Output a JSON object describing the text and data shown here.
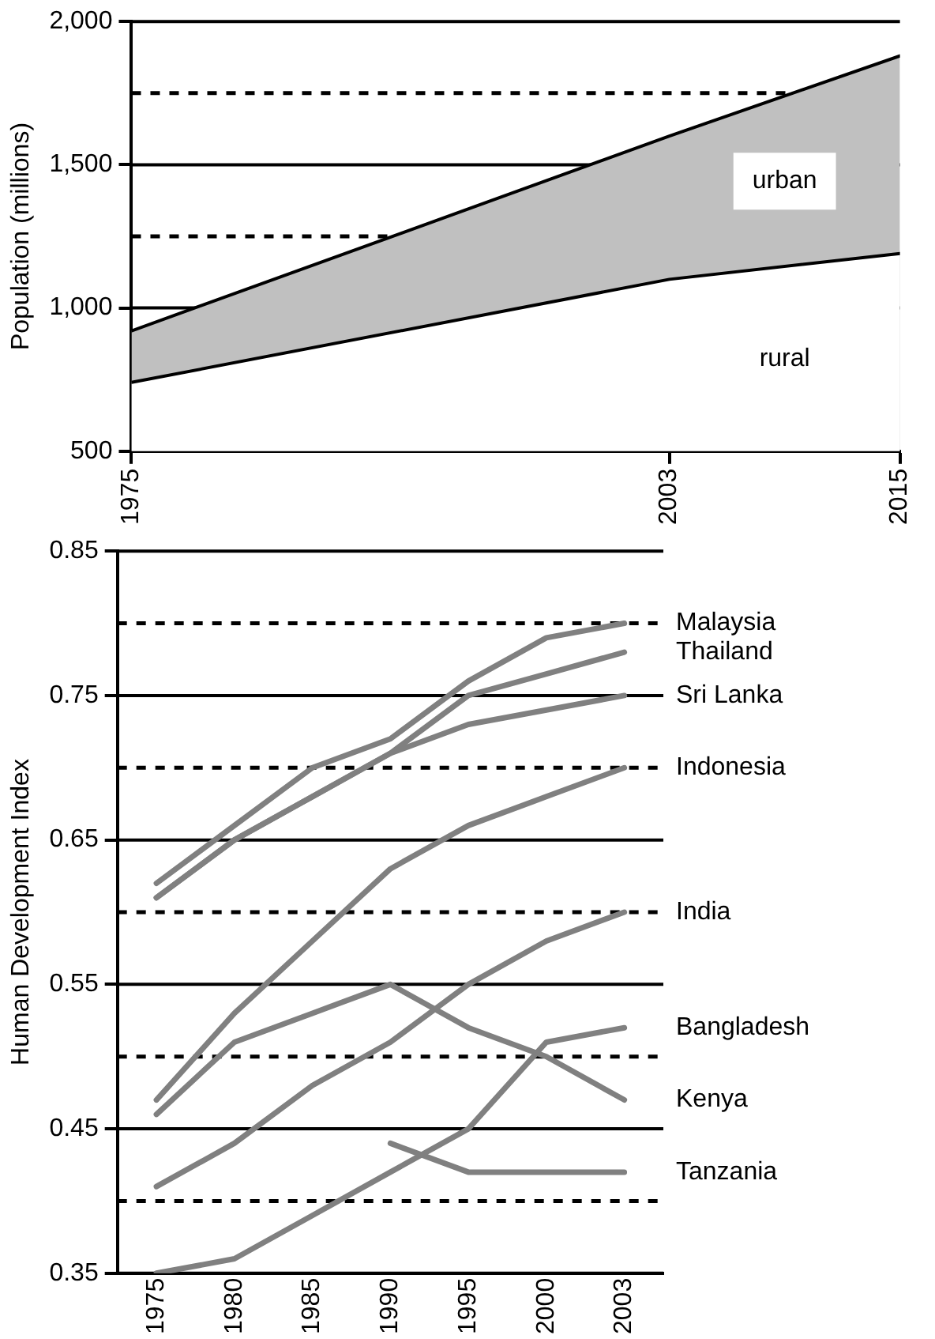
{
  "chart_data": [
    {
      "type": "area",
      "annotations": [
        "urban"
      ],
      "ylabel": "Population (millions)",
      "x": [
        1975,
        2003,
        2015
      ],
      "xlim": [
        1975,
        2015
      ],
      "xticks": [
        1975,
        2003,
        2015
      ],
      "ylim": [
        500,
        2000
      ],
      "yticks": [
        500,
        {
          "value": 1000,
          "label": "1,000"
        },
        {
          "value": 1250,
          "label": null
        },
        {
          "value": 1500,
          "label": "1,500"
        },
        {
          "value": 1750,
          "label": null
        },
        {
          "value": 2000,
          "label": "2,000"
        }
      ],
      "grid": "y",
      "legend": false,
      "marker": "none",
      "series": [
        {
          "name": "rural",
          "color": "#ffffff",
          "values": [
            740,
            1100,
            1190
          ]
        },
        {
          "color": "#c0c0c0",
          "values": [
            920,
            1600,
            1880
          ]
        }
      ]
    },
    {
      "type": "line",
      "ylabel": "Human Development Index",
      "categories": [
        "1975",
        "1980",
        "1985",
        "1990",
        "1995",
        "2000",
        "2003"
      ],
      "ylim": [
        0.35,
        0.85
      ],
      "yticks": [
        0.35,
        {
          "value": 0.4,
          "label": null
        },
        0.45,
        {
          "value": 0.5,
          "label": null
        },
        0.55,
        {
          "value": 0.6,
          "label": null
        },
        0.65,
        {
          "value": 0.7,
          "label": null
        },
        0.75,
        {
          "value": 0.8,
          "label": null
        },
        0.85
      ],
      "grid": "y",
      "legend": false,
      "marker": "none",
      "series": [
        {
          "name": "Malaysia",
          "color": "#808080",
          "values": [
            0.62,
            0.66,
            0.7,
            0.72,
            0.76,
            0.79,
            0.8
          ]
        },
        {
          "name": "Thailand",
          "color": "#808080",
          "values": [
            0.61,
            0.65,
            0.68,
            0.71,
            0.75,
            0.765,
            0.78
          ]
        },
        {
          "name": "Sri Lanka",
          "color": "#808080",
          "values": [
            0.61,
            0.65,
            0.68,
            0.71,
            0.73,
            0.74,
            0.75
          ]
        },
        {
          "name": "Indonesia",
          "color": "#808080",
          "values": [
            0.47,
            0.53,
            0.58,
            0.63,
            0.66,
            0.68,
            0.7
          ]
        },
        {
          "name": "India",
          "color": "#808080",
          "values": [
            0.41,
            0.44,
            0.48,
            0.51,
            0.55,
            0.58,
            0.6
          ]
        },
        {
          "name": "Bangladesh",
          "color": "#808080",
          "values": [
            0.35,
            0.36,
            0.39,
            0.42,
            0.45,
            0.51,
            0.52
          ]
        },
        {
          "name": "Kenya",
          "color": "#808080",
          "values": [
            0.46,
            0.51,
            0.53,
            0.55,
            0.52,
            0.5,
            0.47
          ]
        },
        {
          "name": "Tanzania",
          "color": "#808080",
          "values": [
            null,
            null,
            null,
            0.44,
            0.42,
            0.42,
            0.42
          ]
        }
      ]
    }
  ]
}
